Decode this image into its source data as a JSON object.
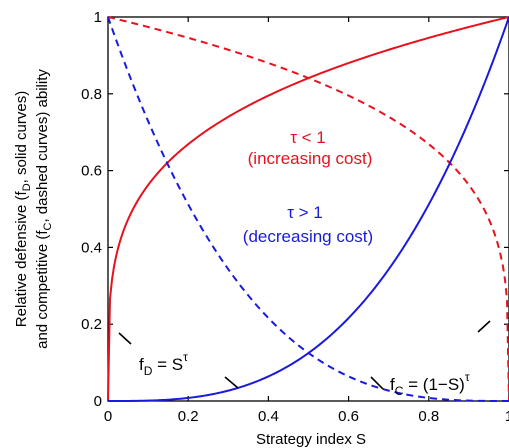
{
  "chart_data": {
    "type": "line",
    "xlabel": "Strategy index S",
    "ylabel_line1": "Relative defensive (f",
    "ylabel_line1_sub": "D",
    "ylabel_line1_rest": ", solid curves)",
    "ylabel_line2": "and competitive (f",
    "ylabel_line2_sub": "C",
    "ylabel_line2_rest": ", dashed curves) ability",
    "xlim": [
      0,
      1
    ],
    "ylim": [
      0,
      1
    ],
    "x_ticks": [
      0,
      0.2,
      0.4,
      0.6,
      0.8,
      1
    ],
    "y_ticks": [
      0,
      0.2,
      0.4,
      0.6,
      0.8,
      1
    ],
    "x_tick_labels": [
      "0",
      "0.2",
      "0.4",
      "0.6",
      "0.8",
      "1"
    ],
    "y_tick_labels": [
      "0",
      "0.2",
      "0.4",
      "0.6",
      "0.8",
      "1"
    ],
    "grid": false,
    "series": [
      {
        "formula": "S^tau",
        "tau": 0.25,
        "style": "solid",
        "color": "#e8121e",
        "x": [
          0,
          0.02,
          0.05,
          0.1,
          0.2,
          0.3,
          0.4,
          0.5,
          0.6,
          0.7,
          0.8,
          0.9,
          1
        ],
        "y": [
          0,
          0.38,
          0.47,
          0.56,
          0.67,
          0.74,
          0.8,
          0.84,
          0.88,
          0.91,
          0.95,
          0.97,
          1
        ]
      },
      {
        "formula": "(1-S)^tau",
        "tau": 0.25,
        "style": "dashed",
        "color": "#e8121e",
        "x": [
          0,
          0.1,
          0.2,
          0.3,
          0.4,
          0.5,
          0.6,
          0.7,
          0.8,
          0.9,
          0.95,
          0.98,
          1
        ],
        "y": [
          1,
          0.97,
          0.95,
          0.91,
          0.88,
          0.84,
          0.8,
          0.74,
          0.67,
          0.56,
          0.47,
          0.38,
          0
        ]
      },
      {
        "formula": "S^tau",
        "tau": 3,
        "style": "solid",
        "color": "#1a1adc",
        "x": [
          0,
          0.1,
          0.2,
          0.3,
          0.4,
          0.5,
          0.6,
          0.7,
          0.8,
          0.9,
          1
        ],
        "y": [
          0,
          0.001,
          0.008,
          0.027,
          0.064,
          0.125,
          0.216,
          0.343,
          0.512,
          0.729,
          1
        ]
      },
      {
        "formula": "(1-S)^tau",
        "tau": 3,
        "style": "dashed",
        "color": "#1a1adc",
        "x": [
          0,
          0.1,
          0.2,
          0.3,
          0.4,
          0.5,
          0.6,
          0.7,
          0.8,
          0.9,
          1
        ],
        "y": [
          1,
          0.729,
          0.512,
          0.343,
          0.216,
          0.125,
          0.064,
          0.027,
          0.008,
          0.001,
          0
        ]
      }
    ],
    "annotations": {
      "tau_lt_1": "τ < 1",
      "increasing_cost": "(increasing cost)",
      "tau_gt_1": "τ > 1",
      "decreasing_cost": "(decreasing cost)",
      "fD_f": "f",
      "fD_sub": "D",
      "fD_eq": " = S",
      "fD_sup": "τ",
      "fC_f": "f",
      "fC_sub": "C",
      "fC_eq": " = (1−S)",
      "fC_sup": "τ"
    },
    "colors": {
      "red": "#e8121e",
      "blue": "#1a1adc",
      "axis": "#000000"
    }
  }
}
